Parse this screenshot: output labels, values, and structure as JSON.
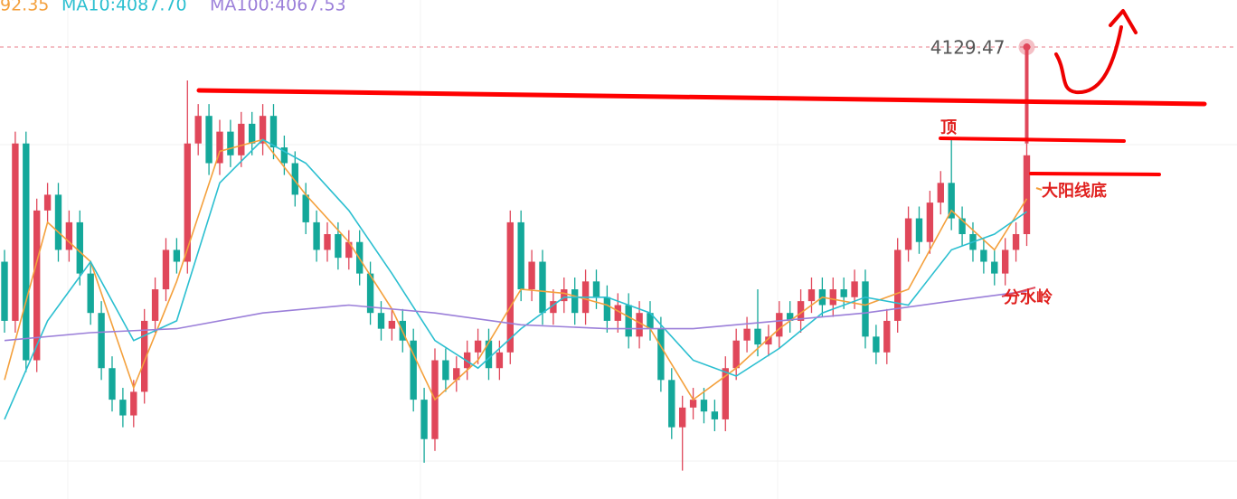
{
  "chart_data": {
    "type": "candlestick",
    "xlim": [
      -0.42,
      114.54
    ],
    "ylim": [
      4014.8,
      4141.4
    ],
    "up_color": "#e0475a",
    "down_color": "#14a89a",
    "open": [
      4075,
      4060,
      4105,
      4050,
      4088,
      4092,
      4078,
      4085,
      4072,
      4062,
      4048,
      4040,
      4036,
      4042,
      4060,
      4068,
      4078,
      4075,
      4105,
      4112,
      4100,
      4108,
      4102,
      4110,
      4105,
      4112,
      4104,
      4100,
      4092,
      4085,
      4078,
      4082,
      4076,
      4080,
      4072,
      4062,
      4058,
      4060,
      4055,
      4040,
      4030,
      4050,
      4045,
      4048,
      4052,
      4055,
      4048,
      4052,
      4085,
      4068,
      4075,
      4062,
      4065,
      4068,
      4062,
      4070,
      4066,
      4060,
      4064,
      4056,
      4062,
      4058,
      4045,
      4033,
      4038,
      4040,
      4037,
      4035,
      4048,
      4055,
      4058,
      4054,
      4056,
      4062,
      4060,
      4065,
      4068,
      4064,
      4068,
      4066,
      4070,
      4056,
      4052,
      4060,
      4078,
      4086,
      4080,
      4090,
      4095,
      4086,
      4082,
      4078,
      4075,
      4072,
      4078,
      4082
    ],
    "high": [
      4078,
      4108,
      4108,
      4091,
      4095,
      4095,
      4088,
      4088,
      4075,
      4065,
      4051,
      4043,
      4045,
      4063,
      4071,
      4081,
      4081,
      4121,
      4115,
      4115,
      4111,
      4111,
      4113,
      4113,
      4115,
      4115,
      4107,
      4103,
      4095,
      4088,
      4085,
      4085,
      4083,
      4083,
      4075,
      4065,
      4063,
      4063,
      4058,
      4043,
      4053,
      4053,
      4051,
      4055,
      4058,
      4058,
      4055,
      4088,
      4088,
      4078,
      4078,
      4068,
      4071,
      4071,
      4073,
      4073,
      4069,
      4067,
      4067,
      4065,
      4065,
      4061,
      4048,
      4041,
      4043,
      4043,
      4040,
      4051,
      4058,
      4061,
      4068,
      4059,
      4065,
      4065,
      4068,
      4071,
      4071,
      4071,
      4071,
      4073,
      4073,
      4059,
      4063,
      4081,
      4089,
      4089,
      4093,
      4098,
      4106,
      4089,
      4085,
      4081,
      4078,
      4081,
      4085,
      4105
    ],
    "low": [
      4057,
      4057,
      4047,
      4047,
      4085,
      4075,
      4075,
      4069,
      4059,
      4045,
      4037,
      4033,
      4033,
      4039,
      4057,
      4065,
      4072,
      4072,
      4102,
      4097,
      4097,
      4099,
      4099,
      4102,
      4102,
      4101,
      4097,
      4089,
      4082,
      4075,
      4075,
      4073,
      4073,
      4069,
      4059,
      4055,
      4055,
      4052,
      4037,
      4024,
      4027,
      4042,
      4042,
      4045,
      4049,
      4045,
      4045,
      4049,
      4065,
      4065,
      4059,
      4059,
      4062,
      4059,
      4059,
      4063,
      4057,
      4057,
      4053,
      4053,
      4055,
      4042,
      4030,
      4022,
      4035,
      4034,
      4032,
      4032,
      4045,
      4052,
      4051,
      4051,
      4053,
      4057,
      4057,
      4062,
      4061,
      4061,
      4063,
      4063,
      4053,
      4049,
      4049,
      4057,
      4075,
      4077,
      4077,
      4087,
      4083,
      4079,
      4075,
      4072,
      4069,
      4069,
      4075,
      4079
    ],
    "close": [
      4060,
      4105,
      4050,
      4088,
      4092,
      4078,
      4085,
      4072,
      4062,
      4048,
      4040,
      4036,
      4042,
      4060,
      4068,
      4078,
      4075,
      4105,
      4112,
      4100,
      4108,
      4102,
      4110,
      4105,
      4112,
      4104,
      4100,
      4092,
      4085,
      4078,
      4082,
      4076,
      4080,
      4072,
      4062,
      4058,
      4060,
      4055,
      4040,
      4030,
      4050,
      4045,
      4048,
      4052,
      4055,
      4048,
      4052,
      4085,
      4068,
      4075,
      4062,
      4065,
      4068,
      4062,
      4070,
      4066,
      4060,
      4064,
      4056,
      4062,
      4058,
      4045,
      4033,
      4038,
      4040,
      4037,
      4035,
      4048,
      4055,
      4058,
      4054,
      4056,
      4062,
      4060,
      4065,
      4068,
      4064,
      4068,
      4066,
      4070,
      4056,
      4052,
      4060,
      4078,
      4086,
      4080,
      4090,
      4095,
      4086,
      4082,
      4078,
      4075,
      4072,
      4078,
      4082,
      4102
    ],
    "series": [
      {
        "name": "92.35",
        "color": "#f4a03c",
        "x": [
          0,
          4,
          8,
          12,
          16,
          20,
          24,
          28,
          32,
          36,
          40,
          44,
          48,
          52,
          56,
          60,
          64,
          68,
          72,
          76,
          80,
          84,
          88,
          92,
          95
        ],
        "values": [
          4045,
          4085,
          4075,
          4043,
          4070,
          4103,
          4106,
          4092,
          4080,
          4063,
          4040,
          4050,
          4068,
          4067,
          4064,
          4058,
          4040,
          4048,
          4058,
          4066,
          4064,
          4068,
          4088,
          4078,
          4091
        ]
      },
      {
        "name": "MA10:4087.70",
        "color": "#2bbfd0",
        "x": [
          0,
          4,
          8,
          12,
          16,
          20,
          24,
          28,
          32,
          36,
          40,
          44,
          48,
          52,
          56,
          60,
          64,
          68,
          72,
          76,
          80,
          84,
          88,
          92,
          95
        ],
        "values": [
          4035,
          4060,
          4075,
          4055,
          4060,
          4095,
          4106,
          4100,
          4088,
          4072,
          4055,
          4048,
          4058,
          4066,
          4066,
          4062,
          4050,
          4046,
          4053,
          4062,
          4066,
          4064,
          4078,
          4082,
          4087.7
        ]
      },
      {
        "name": "MA100:4067.53",
        "color": "#9b7fd9",
        "x": [
          0,
          8,
          16,
          24,
          32,
          40,
          48,
          56,
          64,
          72,
          80,
          88,
          95
        ],
        "values": [
          4055,
          4057,
          4058,
          4062,
          4064,
          4062,
          4059,
          4058,
          4058,
          4060,
          4062,
          4065,
          4067.53
        ]
      }
    ],
    "last_price": 4129.47,
    "annotations": [
      "顶",
      "大阳线底",
      "分水岭"
    ]
  }
}
